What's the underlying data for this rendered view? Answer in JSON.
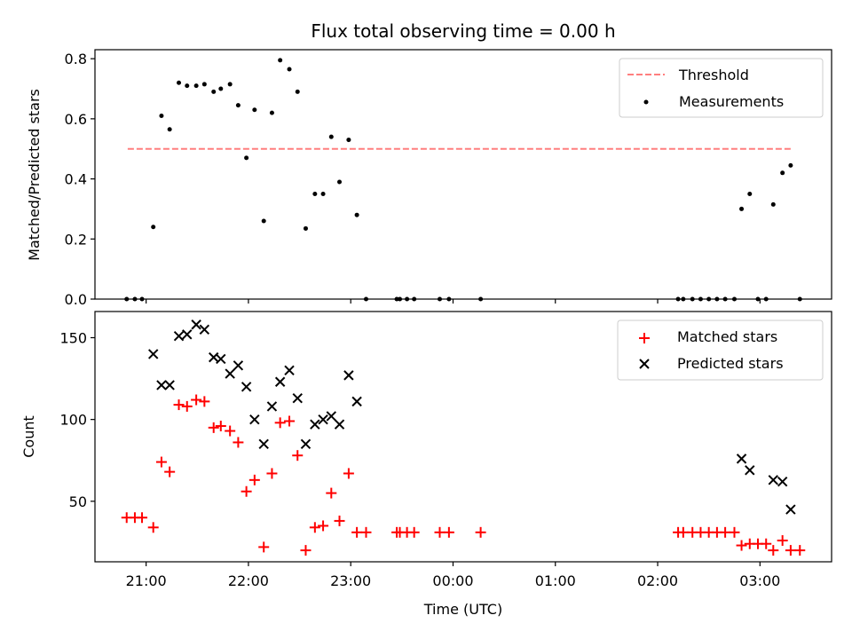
{
  "chart_data": [
    {
      "type": "scatter",
      "title": "Flux total observing time = 0.00 h",
      "xlabel": "",
      "ylabel": "Matched/Predicted stars",
      "ylim": [
        0,
        0.83
      ],
      "xlim": [
        -0.5,
        6.7
      ],
      "x_unit": "hours after 21:00 UTC",
      "yticks": [
        0.0,
        0.2,
        0.4,
        0.6,
        0.8
      ],
      "ytick_labels": [
        "0.0",
        "0.2",
        "0.4",
        "0.6",
        "0.8"
      ],
      "grid": false,
      "legend_position": "top-right",
      "threshold": {
        "name": "Threshold",
        "value": 0.5,
        "x_range": [
          -0.18,
          6.32
        ],
        "color": "#ff7f7f",
        "style": "dashed"
      },
      "series": [
        {
          "name": "Measurements",
          "color": "#000000",
          "marker": "dot",
          "points": [
            [
              -0.19,
              0.0
            ],
            [
              -0.11,
              0.0
            ],
            [
              -0.04,
              0.0
            ],
            [
              0.07,
              0.24
            ],
            [
              0.15,
              0.61
            ],
            [
              0.23,
              0.565
            ],
            [
              0.32,
              0.72
            ],
            [
              0.4,
              0.71
            ],
            [
              0.49,
              0.71
            ],
            [
              0.57,
              0.715
            ],
            [
              0.66,
              0.69
            ],
            [
              0.73,
              0.7
            ],
            [
              0.82,
              0.715
            ],
            [
              0.9,
              0.645
            ],
            [
              0.98,
              0.47
            ],
            [
              1.06,
              0.63
            ],
            [
              1.15,
              0.26
            ],
            [
              1.23,
              0.62
            ],
            [
              1.31,
              0.795
            ],
            [
              1.4,
              0.765
            ],
            [
              1.48,
              0.69
            ],
            [
              1.56,
              0.235
            ],
            [
              1.65,
              0.35
            ],
            [
              1.73,
              0.35
            ],
            [
              1.81,
              0.54
            ],
            [
              1.89,
              0.39
            ],
            [
              1.98,
              0.53
            ],
            [
              2.06,
              0.28
            ],
            [
              2.15,
              0.0
            ],
            [
              2.45,
              0.0
            ],
            [
              2.48,
              0.0
            ],
            [
              2.55,
              0.0
            ],
            [
              2.62,
              0.0
            ],
            [
              2.87,
              0.0
            ],
            [
              2.96,
              0.0
            ],
            [
              3.27,
              0.0
            ],
            [
              5.2,
              0.0
            ],
            [
              5.25,
              0.0
            ],
            [
              5.34,
              0.0
            ],
            [
              5.42,
              0.0
            ],
            [
              5.5,
              0.0
            ],
            [
              5.58,
              0.0
            ],
            [
              5.66,
              0.0
            ],
            [
              5.75,
              0.0
            ],
            [
              5.82,
              0.3
            ],
            [
              5.9,
              0.35
            ],
            [
              5.98,
              0.0
            ],
            [
              6.06,
              0.0
            ],
            [
              6.13,
              0.315
            ],
            [
              6.22,
              0.42
            ],
            [
              6.3,
              0.445
            ],
            [
              6.39,
              0.0
            ]
          ]
        }
      ]
    },
    {
      "type": "scatter",
      "title": "",
      "xlabel": "Time (UTC)",
      "ylabel": "Count",
      "ylim": [
        13,
        166
      ],
      "xlim": [
        -0.5,
        6.7
      ],
      "x_unit": "hours after 21:00 UTC",
      "xticks": [
        0,
        1,
        2,
        3,
        4,
        5,
        6
      ],
      "xtick_labels": [
        "21:00",
        "22:00",
        "23:00",
        "00:00",
        "01:00",
        "02:00",
        "03:00"
      ],
      "yticks": [
        50,
        100,
        150
      ],
      "ytick_labels": [
        "50",
        "100",
        "150"
      ],
      "grid": false,
      "legend_position": "top-right",
      "series": [
        {
          "name": "Matched stars",
          "color": "#ff0000",
          "marker": "plus",
          "points": [
            [
              -0.19,
              40
            ],
            [
              -0.11,
              40
            ],
            [
              -0.04,
              40
            ],
            [
              0.07,
              34
            ],
            [
              0.15,
              74
            ],
            [
              0.23,
              68
            ],
            [
              0.32,
              109
            ],
            [
              0.4,
              108
            ],
            [
              0.49,
              112
            ],
            [
              0.57,
              111
            ],
            [
              0.66,
              95
            ],
            [
              0.73,
              96
            ],
            [
              0.82,
              93
            ],
            [
              0.9,
              86
            ],
            [
              0.98,
              56
            ],
            [
              1.06,
              63
            ],
            [
              1.15,
              22
            ],
            [
              1.23,
              67
            ],
            [
              1.31,
              98
            ],
            [
              1.4,
              99
            ],
            [
              1.48,
              78
            ],
            [
              1.56,
              20
            ],
            [
              1.65,
              34
            ],
            [
              1.73,
              35
            ],
            [
              1.81,
              55
            ],
            [
              1.89,
              38
            ],
            [
              1.98,
              67
            ],
            [
              2.06,
              31
            ],
            [
              2.15,
              31
            ],
            [
              2.45,
              31
            ],
            [
              2.48,
              31
            ],
            [
              2.55,
              31
            ],
            [
              2.62,
              31
            ],
            [
              2.87,
              31
            ],
            [
              2.96,
              31
            ],
            [
              3.27,
              31
            ],
            [
              5.2,
              31
            ],
            [
              5.25,
              31
            ],
            [
              5.34,
              31
            ],
            [
              5.42,
              31
            ],
            [
              5.5,
              31
            ],
            [
              5.58,
              31
            ],
            [
              5.66,
              31
            ],
            [
              5.75,
              31
            ],
            [
              5.82,
              23
            ],
            [
              5.9,
              24
            ],
            [
              5.98,
              24
            ],
            [
              6.06,
              24
            ],
            [
              6.13,
              20
            ],
            [
              6.22,
              26
            ],
            [
              6.3,
              20
            ],
            [
              6.39,
              20
            ]
          ]
        },
        {
          "name": "Predicted stars",
          "color": "#000000",
          "marker": "x",
          "points": [
            [
              0.07,
              140
            ],
            [
              0.15,
              121
            ],
            [
              0.23,
              121
            ],
            [
              0.32,
              151
            ],
            [
              0.4,
              152
            ],
            [
              0.49,
              158
            ],
            [
              0.57,
              155
            ],
            [
              0.66,
              138
            ],
            [
              0.73,
              137
            ],
            [
              0.82,
              128
            ],
            [
              0.9,
              133
            ],
            [
              0.98,
              120
            ],
            [
              1.06,
              100
            ],
            [
              1.15,
              85
            ],
            [
              1.23,
              108
            ],
            [
              1.31,
              123
            ],
            [
              1.4,
              130
            ],
            [
              1.48,
              113
            ],
            [
              1.56,
              85
            ],
            [
              1.65,
              97
            ],
            [
              1.73,
              100
            ],
            [
              1.81,
              102
            ],
            [
              1.89,
              97
            ],
            [
              1.98,
              127
            ],
            [
              2.06,
              111
            ],
            [
              5.82,
              76
            ],
            [
              5.9,
              69
            ],
            [
              6.13,
              63
            ],
            [
              6.22,
              62
            ],
            [
              6.3,
              45
            ]
          ]
        }
      ]
    }
  ]
}
